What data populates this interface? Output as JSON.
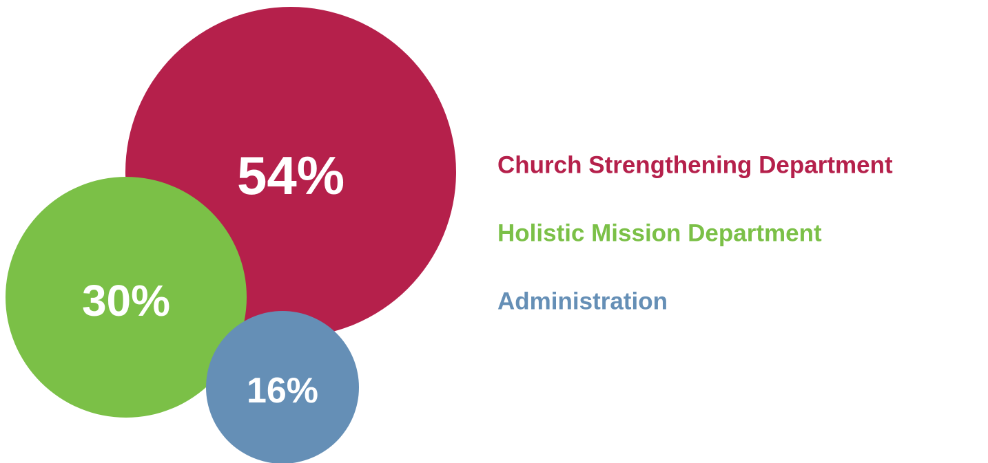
{
  "chart_data": {
    "type": "bubble",
    "categories": [
      "Church Strengthening Department",
      "Holistic Mission Department",
      "Administration"
    ],
    "values": [
      54,
      30,
      16
    ],
    "value_labels": [
      "54%",
      "30%",
      "16%"
    ],
    "colors": [
      "#b5204b",
      "#7bc047",
      "#658fb6"
    ],
    "legend_position": "right"
  }
}
